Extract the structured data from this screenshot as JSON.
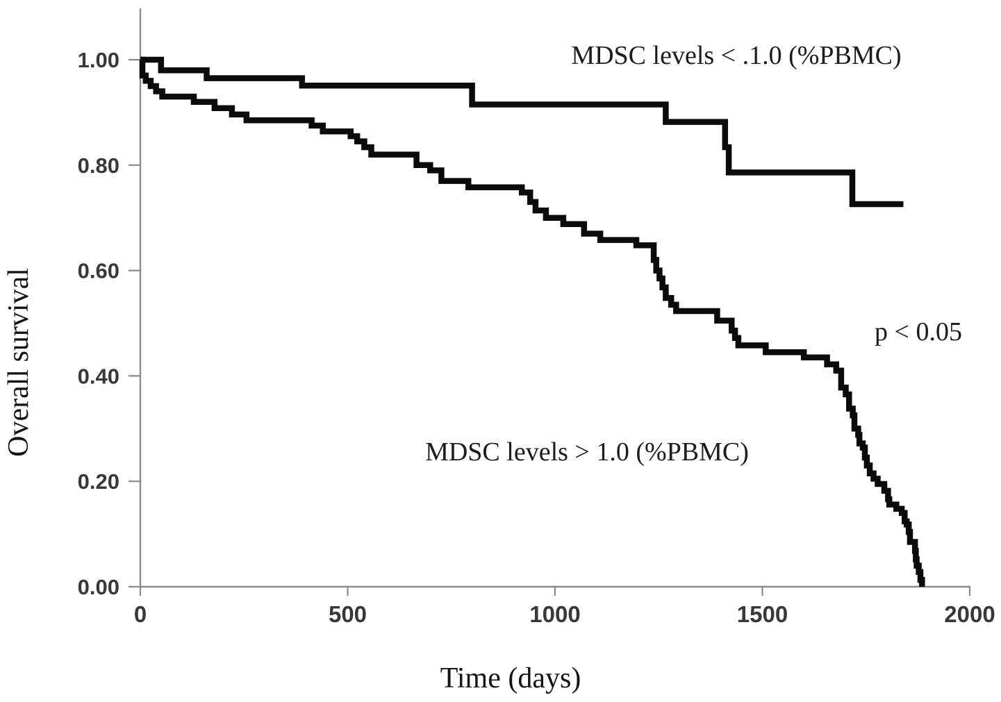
{
  "chart_data": {
    "type": "line",
    "subtype": "kaplan-meier-step-curves",
    "title": "",
    "xlabel": "Time (days)",
    "ylabel": "Overall survival",
    "xlim": [
      0,
      2000
    ],
    "ylim": [
      0.0,
      1.0
    ],
    "grid": "off",
    "legend": "none",
    "axis_color": "#8a8a8a",
    "curve_color": "#0b0b0b",
    "x_ticks": [
      {
        "value": 0,
        "label": "0"
      },
      {
        "value": 500,
        "label": "500"
      },
      {
        "value": 1000,
        "label": "1000"
      },
      {
        "value": 1500,
        "label": "1500"
      },
      {
        "value": 2000,
        "label": "2000"
      }
    ],
    "y_ticks": [
      {
        "value": 1.0,
        "label": "1.00"
      },
      {
        "value": 0.8,
        "label": "0.80"
      },
      {
        "value": 0.6,
        "label": "0.60"
      },
      {
        "value": 0.4,
        "label": "0.40"
      },
      {
        "value": 0.2,
        "label": "0.20"
      },
      {
        "value": 0.0,
        "label": "0.00"
      }
    ],
    "annotations": {
      "low_mdsc": {
        "text": "MDSC levels < .1.0 (%PBMC)",
        "x_day": 1437,
        "y_survival": 0.995
      },
      "high_mdsc": {
        "text": "MDSC levels > 1.0 (%PBMC)",
        "x_day": 1077,
        "y_survival": 0.245
      },
      "p_value": {
        "text": "p < 0.05",
        "x_day": 1876,
        "y_survival": 0.475
      }
    },
    "series": [
      {
        "name": "MDSC levels < .1.0 (%PBMC)",
        "role": "upper-curve",
        "steps": [
          [
            0,
            1.0
          ],
          [
            50,
            0.98
          ],
          [
            160,
            0.965
          ],
          [
            390,
            0.951
          ],
          [
            800,
            0.915
          ],
          [
            1267,
            0.882
          ],
          [
            1410,
            0.834
          ],
          [
            1419,
            0.786
          ],
          [
            1717,
            0.726
          ],
          [
            1840,
            0.726
          ]
        ]
      },
      {
        "name": "MDSC levels > 1.0 (%PBMC)",
        "role": "lower-curve",
        "steps": [
          [
            0,
            1.0
          ],
          [
            5,
            0.97
          ],
          [
            13,
            0.96
          ],
          [
            25,
            0.95
          ],
          [
            38,
            0.94
          ],
          [
            53,
            0.93
          ],
          [
            129,
            0.92
          ],
          [
            179,
            0.908
          ],
          [
            221,
            0.896
          ],
          [
            256,
            0.885
          ],
          [
            413,
            0.875
          ],
          [
            440,
            0.864
          ],
          [
            507,
            0.855
          ],
          [
            523,
            0.845
          ],
          [
            540,
            0.834
          ],
          [
            557,
            0.82
          ],
          [
            666,
            0.8
          ],
          [
            699,
            0.79
          ],
          [
            726,
            0.77
          ],
          [
            791,
            0.758
          ],
          [
            920,
            0.748
          ],
          [
            940,
            0.73
          ],
          [
            953,
            0.714
          ],
          [
            978,
            0.7
          ],
          [
            1020,
            0.688
          ],
          [
            1070,
            0.67
          ],
          [
            1109,
            0.658
          ],
          [
            1196,
            0.648
          ],
          [
            1238,
            0.62
          ],
          [
            1244,
            0.6
          ],
          [
            1252,
            0.585
          ],
          [
            1259,
            0.568
          ],
          [
            1267,
            0.548
          ],
          [
            1280,
            0.535
          ],
          [
            1292,
            0.523
          ],
          [
            1391,
            0.505
          ],
          [
            1426,
            0.486
          ],
          [
            1434,
            0.472
          ],
          [
            1442,
            0.458
          ],
          [
            1508,
            0.445
          ],
          [
            1600,
            0.435
          ],
          [
            1656,
            0.422
          ],
          [
            1678,
            0.41
          ],
          [
            1690,
            0.378
          ],
          [
            1701,
            0.365
          ],
          [
            1709,
            0.338
          ],
          [
            1718,
            0.325
          ],
          [
            1722,
            0.3
          ],
          [
            1731,
            0.288
          ],
          [
            1734,
            0.272
          ],
          [
            1742,
            0.264
          ],
          [
            1747,
            0.245
          ],
          [
            1752,
            0.23
          ],
          [
            1759,
            0.215
          ],
          [
            1768,
            0.205
          ],
          [
            1778,
            0.195
          ],
          [
            1794,
            0.182
          ],
          [
            1803,
            0.166
          ],
          [
            1806,
            0.156
          ],
          [
            1823,
            0.148
          ],
          [
            1836,
            0.14
          ],
          [
            1843,
            0.124
          ],
          [
            1848,
            0.118
          ],
          [
            1853,
            0.104
          ],
          [
            1856,
            0.085
          ],
          [
            1868,
            0.068
          ],
          [
            1870,
            0.052
          ],
          [
            1872,
            0.04
          ],
          [
            1877,
            0.028
          ],
          [
            1881,
            0.013
          ],
          [
            1885,
            0.0
          ]
        ]
      }
    ]
  }
}
